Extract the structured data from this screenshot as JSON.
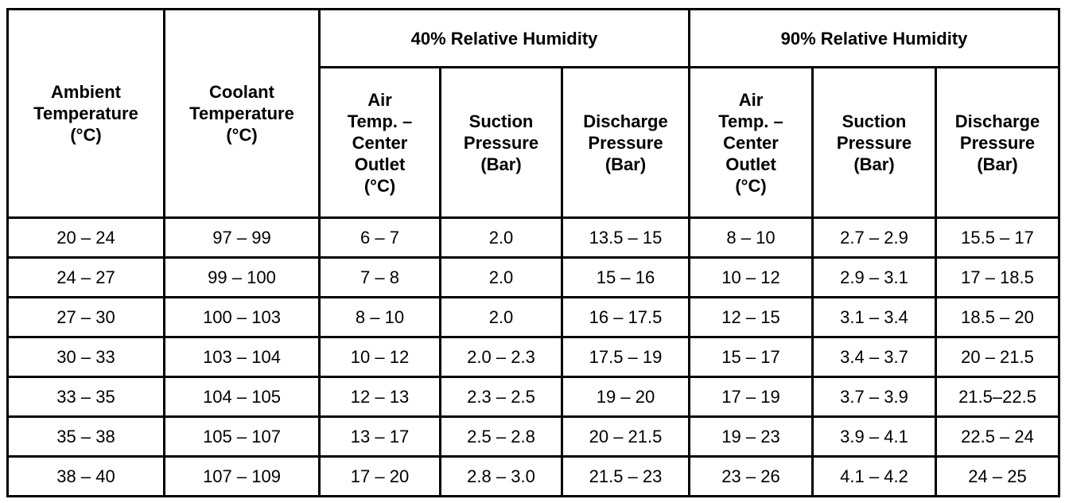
{
  "table": {
    "group_headers": [
      "40% Relative Humidity",
      "90% Relative Humidity"
    ],
    "columns": [
      [
        "Ambient",
        "Temperature",
        "(°C)"
      ],
      [
        "Coolant",
        "Temperature",
        "(°C)"
      ],
      [
        "Air",
        "Temp. –",
        "Center",
        "Outlet",
        "(°C)"
      ],
      [
        "Suction",
        "Pressure",
        "(Bar)"
      ],
      [
        "Discharge",
        "Pressure",
        "(Bar)"
      ],
      [
        "Air",
        "Temp. –",
        "Center",
        "Outlet",
        "(°C)"
      ],
      [
        "Suction",
        "Pressure",
        "(Bar)"
      ],
      [
        "Discharge",
        "Pressure",
        "(Bar)"
      ]
    ],
    "rows": [
      [
        "20 – 24",
        "97 – 99",
        "6 – 7",
        "2.0",
        "13.5 – 15",
        "8 – 10",
        "2.7 – 2.9",
        "15.5 – 17"
      ],
      [
        "24 – 27",
        "99 – 100",
        "7 – 8",
        "2.0",
        "15 – 16",
        "10 – 12",
        "2.9 – 3.1",
        "17 – 18.5"
      ],
      [
        "27 – 30",
        "100 – 103",
        "8 – 10",
        "2.0",
        "16 – 17.5",
        "12 – 15",
        "3.1 – 3.4",
        "18.5 – 20"
      ],
      [
        "30 – 33",
        "103 – 104",
        "10 – 12",
        "2.0 – 2.3",
        "17.5 – 19",
        "15 – 17",
        "3.4 – 3.7",
        "20 – 21.5"
      ],
      [
        "33 – 35",
        "104 – 105",
        "12 – 13",
        "2.3 – 2.5",
        "19 – 20",
        "17 – 19",
        "3.7 – 3.9",
        "21.5–22.5"
      ],
      [
        "35 – 38",
        "105 – 107",
        "13 – 17",
        "2.5 – 2.8",
        "20 – 21.5",
        "19 – 23",
        "3.9 – 4.1",
        "22.5 – 24"
      ],
      [
        "38 – 40",
        "107 – 109",
        "17 – 20",
        "2.8 – 3.0",
        "21.5 – 23",
        "23 – 26",
        "4.1 – 4.2",
        "24 – 25"
      ]
    ]
  }
}
